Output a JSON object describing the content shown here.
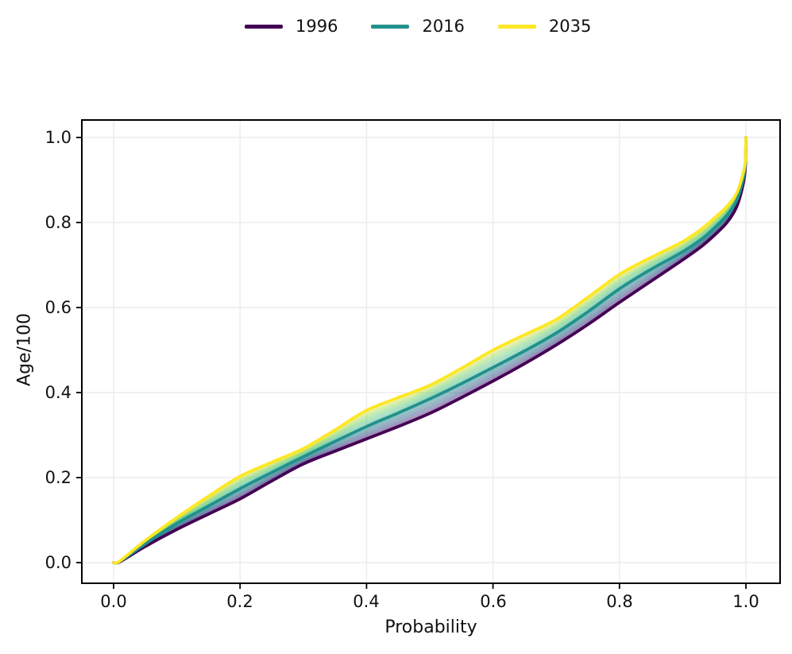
{
  "figure": {
    "background": "#ffffff"
  },
  "chart_data": {
    "type": "line",
    "title": "",
    "xlabel": "Probability",
    "ylabel": "Age/100",
    "xlim": [
      0.0,
      1.0
    ],
    "ylim": [
      0.0,
      1.0
    ],
    "grid": true,
    "grid_color": "#ebebeb",
    "spine_color": "#000000",
    "legend_position": "top-center",
    "x_ticks": [
      "0.0",
      "0.2",
      "0.4",
      "0.6",
      "0.8",
      "1.0"
    ],
    "y_ticks": [
      "0.0",
      "0.2",
      "0.4",
      "0.6",
      "0.8",
      "1.0"
    ],
    "x": [
      0,
      0.01,
      0.05,
      0.1,
      0.15,
      0.2,
      0.25,
      0.3,
      0.35,
      0.4,
      0.45,
      0.5,
      0.55,
      0.6,
      0.65,
      0.7,
      0.75,
      0.8,
      0.85,
      0.9,
      0.93,
      0.95,
      0.97,
      0.985,
      0.995,
      0.999,
      1.0
    ],
    "series": [
      {
        "name": "1996",
        "color": "#440154",
        "values": [
          0.0,
          0.002,
          0.038,
          0.078,
          0.114,
          0.15,
          0.192,
          0.232,
          0.262,
          0.291,
          0.32,
          0.351,
          0.388,
          0.427,
          0.468,
          0.512,
          0.56,
          0.612,
          0.662,
          0.712,
          0.744,
          0.77,
          0.8,
          0.836,
          0.886,
          0.928,
          1.0
        ]
      },
      {
        "name": "2016",
        "color": "#21918c",
        "values": [
          0.0,
          0.003,
          0.044,
          0.092,
          0.133,
          0.174,
          0.212,
          0.249,
          0.285,
          0.32,
          0.352,
          0.385,
          0.421,
          0.459,
          0.498,
          0.54,
          0.59,
          0.644,
          0.69,
          0.731,
          0.761,
          0.787,
          0.817,
          0.851,
          0.898,
          0.936,
          1.0
        ]
      },
      {
        "name": "2035",
        "color": "#fde725",
        "values": [
          0.0,
          0.004,
          0.052,
          0.106,
          0.156,
          0.203,
          0.236,
          0.268,
          0.312,
          0.358,
          0.388,
          0.417,
          0.457,
          0.5,
          0.536,
          0.572,
          0.624,
          0.678,
          0.718,
          0.755,
          0.785,
          0.81,
          0.838,
          0.868,
          0.912,
          0.944,
          1.0
        ]
      }
    ],
    "band": {
      "description": "intermediate years 1996-2035 drawn as thin translucent viridis-colored lines between the three bold series",
      "year_start": 1996,
      "year_mid": 2016,
      "year_end": 2035,
      "alpha": 0.22,
      "viridis": [
        "#440154",
        "#46327e",
        "#365c8d",
        "#277f8e",
        "#21918c",
        "#35b779",
        "#5ec962",
        "#a5db36",
        "#fde725"
      ]
    }
  }
}
